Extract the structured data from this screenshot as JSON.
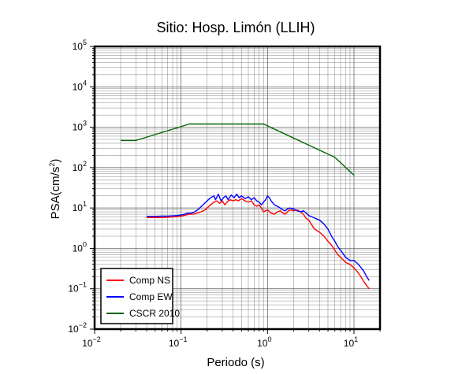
{
  "chart_data": {
    "type": "line",
    "title": "Sitio: Hosp. Limón (LLIH)",
    "xlabel": "Periodo (s)",
    "ylabel": "PSA(cm/s2)",
    "ylabel_main": "PSA(cm/s",
    "ylabel_sup": "2",
    "ylabel_close": ")",
    "x_scale": "log",
    "y_scale": "log",
    "xlim": [
      0.01,
      20
    ],
    "ylim": [
      0.01,
      100000
    ],
    "grid": true,
    "legend_position": "bottom-left",
    "x_ticks": [
      {
        "value": 0.01,
        "base": "10",
        "exp": "−2"
      },
      {
        "value": 0.1,
        "base": "10",
        "exp": "−1"
      },
      {
        "value": 1,
        "base": "10",
        "exp": "0"
      },
      {
        "value": 10,
        "base": "10",
        "exp": "1"
      }
    ],
    "y_ticks": [
      {
        "value": 0.01,
        "base": "10",
        "exp": "−2"
      },
      {
        "value": 0.1,
        "base": "10",
        "exp": "−1"
      },
      {
        "value": 1,
        "base": "10",
        "exp": "0"
      },
      {
        "value": 10,
        "base": "10",
        "exp": "1"
      },
      {
        "value": 100,
        "base": "10",
        "exp": "2"
      },
      {
        "value": 1000,
        "base": "10",
        "exp": "3"
      },
      {
        "value": 10000,
        "base": "10",
        "exp": "4"
      },
      {
        "value": 100000,
        "base": "10",
        "exp": "5"
      }
    ],
    "series": [
      {
        "name": "Comp NS",
        "color": "#ff0000",
        "points": [
          [
            0.04,
            5.8
          ],
          [
            0.05,
            5.8
          ],
          [
            0.06,
            5.8
          ],
          [
            0.07,
            5.9
          ],
          [
            0.08,
            6.0
          ],
          [
            0.09,
            6.1
          ],
          [
            0.1,
            6.3
          ],
          [
            0.11,
            6.6
          ],
          [
            0.12,
            6.9
          ],
          [
            0.13,
            7.1
          ],
          [
            0.14,
            7.0
          ],
          [
            0.15,
            7.4
          ],
          [
            0.17,
            8.0
          ],
          [
            0.19,
            9.0
          ],
          [
            0.2,
            10
          ],
          [
            0.22,
            12
          ],
          [
            0.24,
            14
          ],
          [
            0.26,
            15
          ],
          [
            0.28,
            13
          ],
          [
            0.3,
            15
          ],
          [
            0.32,
            12
          ],
          [
            0.34,
            14
          ],
          [
            0.37,
            16
          ],
          [
            0.4,
            15
          ],
          [
            0.43,
            16
          ],
          [
            0.46,
            15
          ],
          [
            0.5,
            17
          ],
          [
            0.55,
            15
          ],
          [
            0.6,
            14
          ],
          [
            0.65,
            15
          ],
          [
            0.7,
            12
          ],
          [
            0.75,
            11
          ],
          [
            0.8,
            12
          ],
          [
            0.85,
            10
          ],
          [
            0.9,
            8
          ],
          [
            1.0,
            9
          ],
          [
            1.1,
            7.5
          ],
          [
            1.2,
            7.0
          ],
          [
            1.3,
            8.0
          ],
          [
            1.4,
            8.5
          ],
          [
            1.5,
            7.5
          ],
          [
            1.6,
            7.0
          ],
          [
            1.7,
            8
          ],
          [
            1.8,
            9
          ],
          [
            2.0,
            8.5
          ],
          [
            2.2,
            9.0
          ],
          [
            2.4,
            8.0
          ],
          [
            2.6,
            7.0
          ],
          [
            2.8,
            5.5
          ],
          [
            3.0,
            5.0
          ],
          [
            3.2,
            4.0
          ],
          [
            3.5,
            3.0
          ],
          [
            4.0,
            2.5
          ],
          [
            4.5,
            2.0
          ],
          [
            5.0,
            1.5
          ],
          [
            5.5,
            1.2
          ],
          [
            6.0,
            0.9
          ],
          [
            6.5,
            0.7
          ],
          [
            7.0,
            0.6
          ],
          [
            8.0,
            0.45
          ],
          [
            9.0,
            0.4
          ],
          [
            10.0,
            0.33
          ],
          [
            11.0,
            0.26
          ],
          [
            12.0,
            0.2
          ],
          [
            13.0,
            0.15
          ],
          [
            14.0,
            0.12
          ],
          [
            15.0,
            0.1
          ]
        ]
      },
      {
        "name": "Comp EW",
        "color": "#0000ff",
        "points": [
          [
            0.04,
            6.2
          ],
          [
            0.05,
            6.2
          ],
          [
            0.06,
            6.3
          ],
          [
            0.07,
            6.3
          ],
          [
            0.08,
            6.4
          ],
          [
            0.09,
            6.5
          ],
          [
            0.1,
            6.7
          ],
          [
            0.11,
            7.0
          ],
          [
            0.12,
            7.5
          ],
          [
            0.13,
            7.4
          ],
          [
            0.14,
            7.8
          ],
          [
            0.15,
            8.5
          ],
          [
            0.16,
            9.5
          ],
          [
            0.18,
            12
          ],
          [
            0.2,
            15
          ],
          [
            0.22,
            18
          ],
          [
            0.24,
            20
          ],
          [
            0.25,
            16
          ],
          [
            0.27,
            22
          ],
          [
            0.29,
            15
          ],
          [
            0.31,
            18
          ],
          [
            0.33,
            20
          ],
          [
            0.35,
            16
          ],
          [
            0.38,
            21
          ],
          [
            0.41,
            18
          ],
          [
            0.44,
            22
          ],
          [
            0.47,
            18
          ],
          [
            0.5,
            20
          ],
          [
            0.55,
            17
          ],
          [
            0.6,
            19
          ],
          [
            0.65,
            16
          ],
          [
            0.7,
            18
          ],
          [
            0.75,
            15
          ],
          [
            0.8,
            14
          ],
          [
            0.85,
            12
          ],
          [
            0.9,
            14
          ],
          [
            0.95,
            16
          ],
          [
            1.0,
            20
          ],
          [
            1.05,
            18
          ],
          [
            1.1,
            15
          ],
          [
            1.2,
            12
          ],
          [
            1.3,
            11
          ],
          [
            1.4,
            10
          ],
          [
            1.5,
            9
          ],
          [
            1.6,
            8.5
          ],
          [
            1.7,
            9.5
          ],
          [
            1.8,
            10
          ],
          [
            2.0,
            9.5
          ],
          [
            2.2,
            8.5
          ],
          [
            2.4,
            8.0
          ],
          [
            2.6,
            8.5
          ],
          [
            2.8,
            7.5
          ],
          [
            3.0,
            6.5
          ],
          [
            3.3,
            6.0
          ],
          [
            3.6,
            5.5
          ],
          [
            4.0,
            5.0
          ],
          [
            4.5,
            4.0
          ],
          [
            5.0,
            3.0
          ],
          [
            5.5,
            2.0
          ],
          [
            6.0,
            1.5
          ],
          [
            6.5,
            1.1
          ],
          [
            7.0,
            0.9
          ],
          [
            8.0,
            0.6
          ],
          [
            9.0,
            0.5
          ],
          [
            10.0,
            0.5
          ],
          [
            11.0,
            0.42
          ],
          [
            12.0,
            0.34
          ],
          [
            13.0,
            0.27
          ],
          [
            14.0,
            0.2
          ],
          [
            15.0,
            0.16
          ]
        ]
      },
      {
        "name": "CSCR 2010",
        "color": "#006400",
        "points": [
          [
            0.02,
            470
          ],
          [
            0.03,
            470
          ],
          [
            0.125,
            1200
          ],
          [
            0.9,
            1200
          ],
          [
            6.0,
            180
          ],
          [
            10.0,
            65
          ]
        ]
      }
    ]
  }
}
